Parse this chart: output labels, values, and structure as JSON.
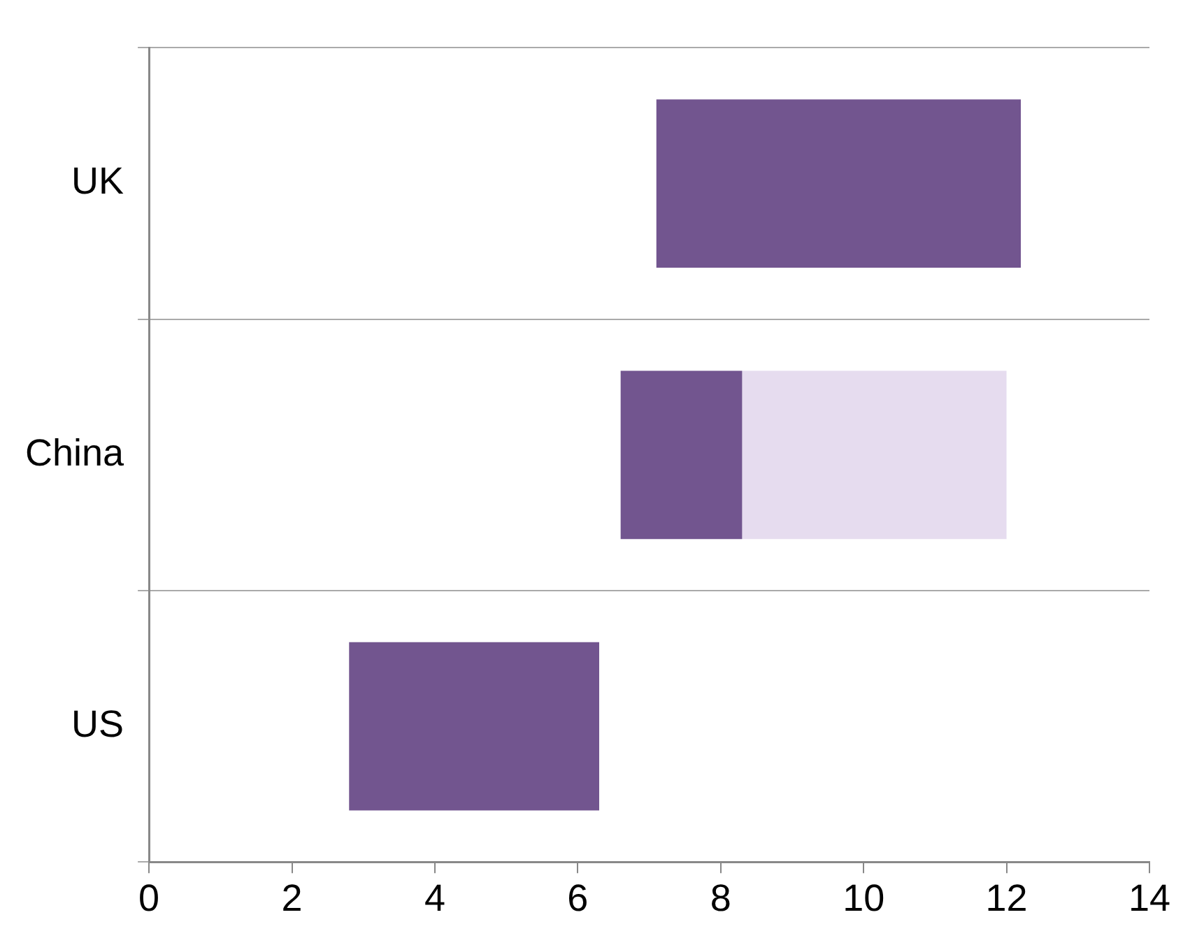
{
  "chart_data": {
    "type": "bar",
    "orientation": "horizontal",
    "categories": [
      "UK",
      "China",
      "US"
    ],
    "series": [
      {
        "color": "#72558f",
        "values": [
          5.1,
          1.7,
          3.5
        ],
        "base": [
          7.1,
          6.6,
          2.8
        ]
      },
      {
        "color": "#e6dcef",
        "values": [
          null,
          3.7,
          null
        ],
        "base": [
          null,
          8.3,
          null
        ]
      }
    ],
    "xlim": [
      0,
      14
    ],
    "xticks": [
      0,
      2,
      4,
      6,
      8,
      10,
      12,
      14
    ],
    "grid": "y",
    "legend": false
  }
}
